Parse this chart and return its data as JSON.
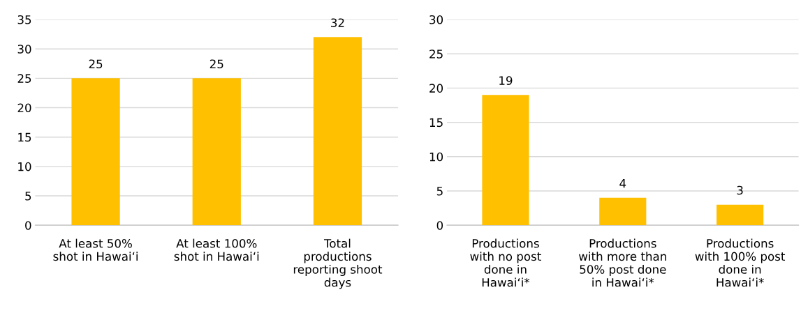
{
  "chart_data": [
    {
      "type": "bar",
      "categories": [
        "At least 50%\nshot in Hawaiʻi",
        "At least 100%\nshot in Hawaiʻi",
        "Total\nproductions\nreporting shoot\ndays"
      ],
      "values": [
        25,
        25,
        32
      ],
      "color": "#ffc000",
      "ylim": [
        0,
        35
      ],
      "yticks": [
        0,
        5,
        10,
        15,
        20,
        25,
        30,
        35
      ],
      "grid": "y",
      "data_labels": true
    },
    {
      "type": "bar",
      "categories": [
        "Productions\nwith no post\ndone in\nHawaiʻi*",
        "Productions\nwith more than\n50% post done\nin Hawaiʻi*",
        "Productions\nwith 100% post\ndone in\nHawaiʻi*"
      ],
      "values": [
        19,
        4,
        3
      ],
      "color": "#ffc000",
      "ylim": [
        0,
        30
      ],
      "yticks": [
        0,
        5,
        10,
        15,
        20,
        25,
        30
      ],
      "grid": "y",
      "data_labels": true
    }
  ]
}
